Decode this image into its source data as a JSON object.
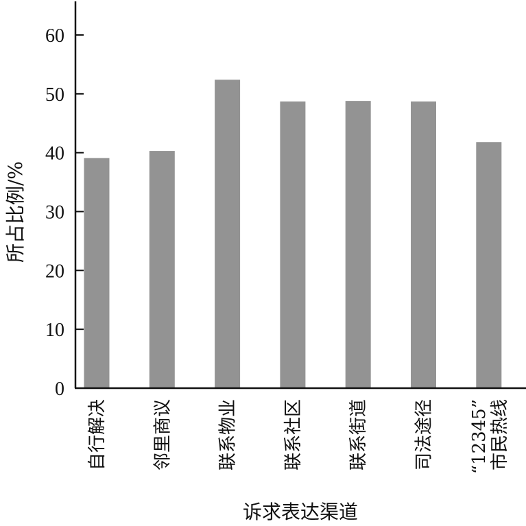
{
  "chart_data": {
    "type": "bar",
    "title": "",
    "xlabel": "诉求表达渠道",
    "ylabel": "所占比例/%",
    "categories": [
      [
        "自行解决"
      ],
      [
        "邻里商议"
      ],
      [
        "联系物业"
      ],
      [
        "联系社区"
      ],
      [
        "联系街道"
      ],
      [
        "司法途径"
      ],
      [
        "“12345”",
        "市民热线"
      ]
    ],
    "values": [
      39.1,
      40.3,
      52.4,
      48.7,
      48.8,
      48.7,
      41.8
    ],
    "ylim": [
      0,
      60
    ],
    "yticks": [
      "0",
      "10",
      "20",
      "30",
      "40",
      "50",
      "60"
    ],
    "grid": false,
    "bar_color": "#939393"
  }
}
